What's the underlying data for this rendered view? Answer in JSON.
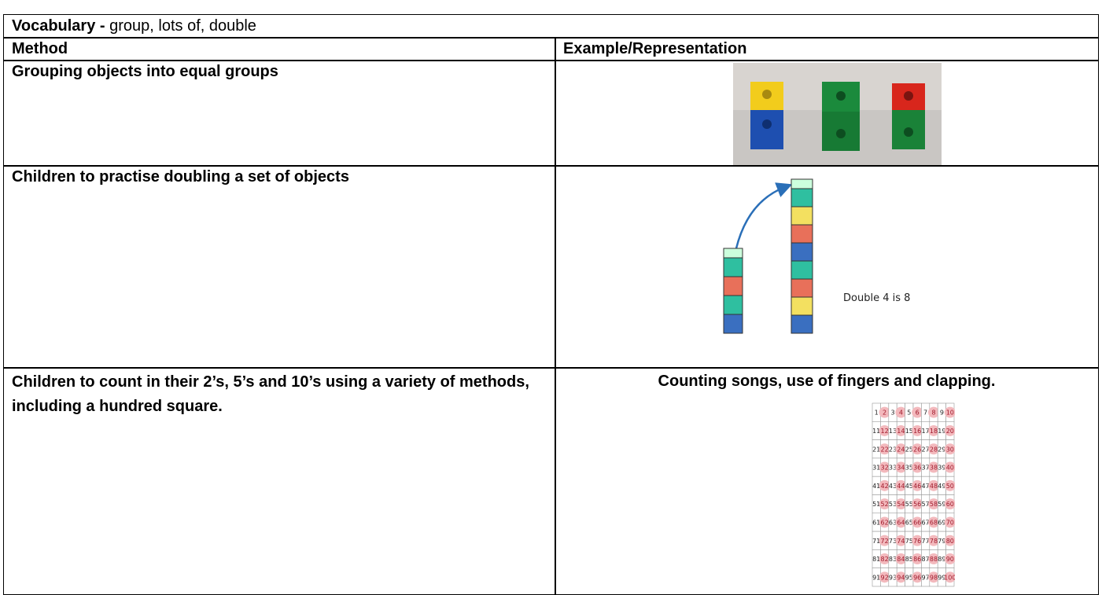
{
  "vocabulary": {
    "label": "Vocabulary -",
    "text": "group, lots of, double"
  },
  "header": {
    "method": "Method",
    "example": "Example/Representation"
  },
  "rows": [
    {
      "method": "Grouping objects into equal groups"
    },
    {
      "method": "Children to practise doubling a set of objects",
      "caption": "Double 4 is 8"
    },
    {
      "method": "Children to count in their 2’s, 5’s and 10’s using a variety of methods, including a hundred square.",
      "example": "Counting songs, use of fingers and clapping."
    }
  ],
  "hundred_square": [
    [
      1,
      2,
      3,
      4,
      5,
      6,
      7,
      8,
      9,
      10
    ],
    [
      11,
      12,
      13,
      14,
      15,
      16,
      17,
      18,
      19,
      20
    ],
    [
      21,
      22,
      23,
      24,
      25,
      26,
      27,
      28,
      29,
      30
    ],
    [
      31,
      32,
      33,
      34,
      35,
      36,
      37,
      38,
      39,
      40
    ],
    [
      41,
      42,
      43,
      44,
      45,
      46,
      47,
      48,
      49,
      50
    ],
    [
      51,
      52,
      53,
      54,
      55,
      56,
      57,
      58,
      59,
      60
    ],
    [
      61,
      62,
      63,
      64,
      65,
      66,
      67,
      68,
      69,
      70
    ],
    [
      71,
      72,
      73,
      74,
      75,
      76,
      77,
      78,
      79,
      80
    ],
    [
      81,
      82,
      83,
      84,
      85,
      86,
      87,
      88,
      89,
      90
    ],
    [
      91,
      92,
      93,
      94,
      95,
      96,
      97,
      98,
      99,
      100
    ]
  ]
}
